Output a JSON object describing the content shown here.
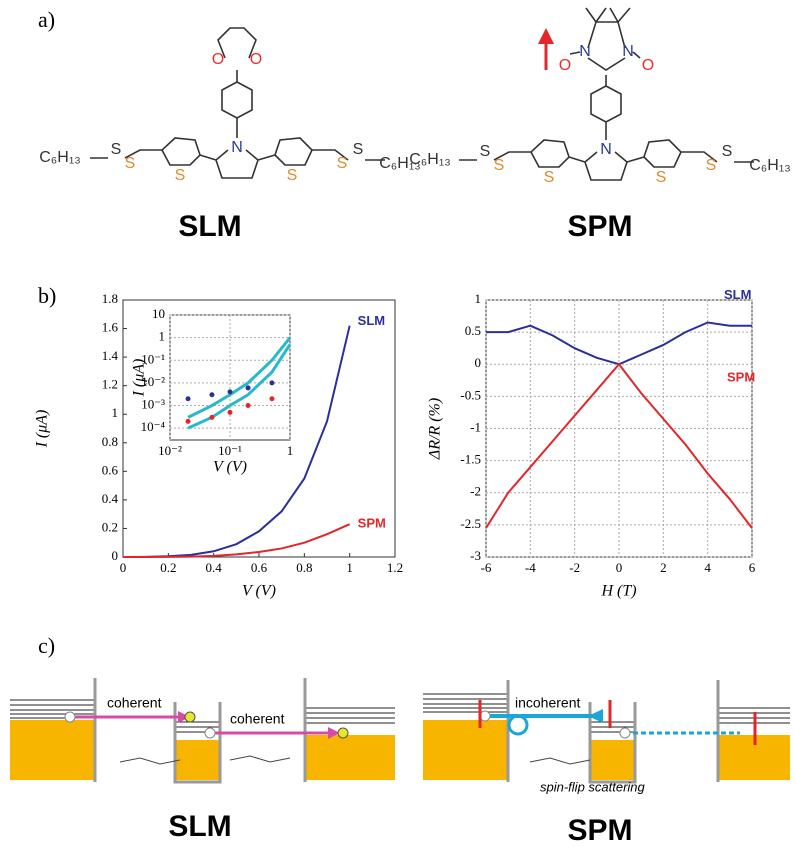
{
  "panels": [
    "a)",
    "b)",
    "c)"
  ],
  "molecules": [
    {
      "name": "SLM",
      "atoms": [
        "O",
        "O",
        "N",
        "S",
        "S",
        "S",
        "S",
        "S",
        "S",
        "C₆H₁₃",
        "C₆H₁₃"
      ]
    },
    {
      "name": "SPM",
      "atoms": [
        "O",
        "N",
        "N",
        "O",
        "N",
        "S",
        "S",
        "S",
        "S",
        "S",
        "S",
        "C₆H₁₃",
        "C₆H₁₃"
      ]
    }
  ],
  "chart_data": [
    {
      "type": "line",
      "x_label": "V (V)",
      "y_label": "I (μA)",
      "x": [
        0,
        0.1,
        0.2,
        0.3,
        0.4,
        0.5,
        0.6,
        0.7,
        0.8,
        0.9,
        1.0
      ],
      "series": [
        {
          "name": "SLM",
          "color": "#2b2f9a",
          "values": [
            0,
            0.001,
            0.005,
            0.015,
            0.04,
            0.09,
            0.18,
            0.32,
            0.55,
            0.95,
            1.62
          ]
        },
        {
          "name": "SPM",
          "color": "#e2262a",
          "values": [
            0,
            0,
            0.001,
            0.003,
            0.008,
            0.018,
            0.035,
            0.06,
            0.1,
            0.16,
            0.23
          ]
        }
      ],
      "xlim": [
        0,
        1.2
      ],
      "xticks": [
        0,
        0.2,
        0.4,
        0.6,
        0.8,
        1,
        1.2
      ],
      "ylim": [
        0,
        1.8
      ],
      "yticks": [
        0,
        0.2,
        0.4,
        0.6,
        0.8,
        1,
        1.2,
        1.4,
        1.6,
        1.8
      ],
      "grid": false
    },
    {
      "type": "line",
      "x_label": "H (T)",
      "y_label": "ΔR/R (%)",
      "x": [
        -6,
        -5,
        -4,
        -3,
        -2,
        -1,
        0,
        1,
        2,
        3,
        4,
        5,
        6
      ],
      "series": [
        {
          "name": "SLM",
          "color": "#2b2f9a",
          "values": [
            0.5,
            0.5,
            0.6,
            0.45,
            0.25,
            0.1,
            0,
            0.15,
            0.3,
            0.5,
            0.65,
            0.6,
            0.6
          ]
        },
        {
          "name": "SPM",
          "color": "#e2262a",
          "values": [
            -2.55,
            -2.0,
            -1.6,
            -1.2,
            -0.8,
            -0.4,
            0,
            -0.45,
            -0.85,
            -1.25,
            -1.7,
            -2.1,
            -2.55
          ]
        }
      ],
      "xlim": [
        -6,
        6
      ],
      "xticks": [
        -6,
        -4,
        -2,
        0,
        2,
        4,
        6
      ],
      "ylim": [
        -3,
        1
      ],
      "yticks": [
        -3,
        -2.5,
        -2,
        -1.5,
        -1,
        -0.5,
        0,
        0.5,
        1
      ],
      "grid": true
    },
    {
      "type": "line",
      "x_label": "V (V)",
      "y_label": "I (μA)",
      "log_x": true,
      "log_y": true,
      "x": [
        0.02,
        0.05,
        0.1,
        0.2,
        0.5,
        1
      ],
      "series": [
        {
          "color": "#27b9c9",
          "values": [
            0.0003,
            0.001,
            0.003,
            0.01,
            0.1,
            1
          ]
        },
        {
          "color": "#27b9c9",
          "values": [
            0.0001,
            0.0003,
            0.001,
            0.003,
            0.03,
            0.5
          ]
        },
        {
          "color": "#2b2f9a",
          "mode": "markers",
          "values": [
            0.002,
            0.003,
            0.004,
            0.006,
            0.01,
            null
          ]
        },
        {
          "color": "#e2262a",
          "mode": "markers",
          "values": [
            0.0002,
            0.0003,
            0.0005,
            0.001,
            0.002,
            null
          ]
        }
      ],
      "xlim": [
        0.01,
        1
      ],
      "xticks": [
        {
          "value": 0.01,
          "label": "10⁻²"
        },
        {
          "value": 0.1,
          "label": "10⁻¹"
        },
        1
      ],
      "ylim": [
        3e-05,
        10
      ],
      "yticks": [
        10,
        1,
        {
          "value": 0.1,
          "label": "10⁻¹"
        },
        {
          "value": 0.01,
          "label": "10⁻²"
        },
        {
          "value": 0.001,
          "label": "10⁻³"
        },
        {
          "value": 0.0001,
          "label": "10⁻⁴"
        }
      ],
      "grid": true
    }
  ],
  "diagram": {
    "slm": {
      "labels": [
        "coherent",
        "coherent"
      ],
      "title": "SLM"
    },
    "spm": {
      "labels": [
        "incoherent",
        "spin-flip scattering"
      ],
      "title": "SPM"
    }
  }
}
